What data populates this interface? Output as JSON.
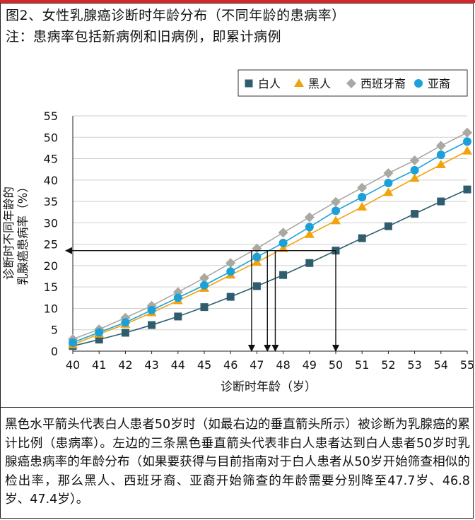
{
  "header": {
    "title": "图2、女性乳腺癌诊断时年龄分布（不同年龄的患病率）",
    "subtitle": "注：患病率包括新病例和旧病例，即累计病例"
  },
  "chart_data": {
    "type": "line",
    "x": [
      40,
      41,
      42,
      43,
      44,
      45,
      46,
      47,
      48,
      49,
      50,
      51,
      52,
      53,
      54,
      55
    ],
    "series": [
      {
        "name": "白人",
        "marker": "square",
        "color": "#2f5d6e",
        "values": [
          1.2,
          2.7,
          4.3,
          6.1,
          8.1,
          10.3,
          12.7,
          15.2,
          17.8,
          20.6,
          23.5,
          26.4,
          29.2,
          32.1,
          35.0,
          37.8
        ]
      },
      {
        "name": "黑人",
        "marker": "triangle",
        "color": "#f2a20c",
        "values": [
          1.5,
          4.0,
          6.3,
          9.0,
          11.8,
          14.7,
          17.8,
          20.8,
          24.0,
          27.3,
          30.5,
          33.7,
          37.1,
          40.4,
          43.6,
          46.8
        ]
      },
      {
        "name": "西班牙裔",
        "marker": "diamond",
        "color": "#a9a8a2",
        "values": [
          2.8,
          5.1,
          7.8,
          10.6,
          13.8,
          17.1,
          20.6,
          24.0,
          27.7,
          31.3,
          34.9,
          38.2,
          41.6,
          44.6,
          48.0,
          51.1
        ]
      },
      {
        "name": "亚裔",
        "marker": "circle",
        "color": "#1ba1d8",
        "values": [
          2.0,
          4.4,
          6.7,
          9.6,
          12.5,
          15.4,
          18.6,
          22.0,
          25.3,
          29.0,
          32.8,
          36.0,
          39.3,
          42.3,
          45.9,
          49.0
        ]
      }
    ],
    "xlabel": "诊断时年龄（岁）",
    "ylabel_lines": [
      "诊断时不同年龄的",
      "乳腺癌患病率（%）"
    ],
    "xlim": [
      40,
      55
    ],
    "ylim": [
      0,
      55
    ],
    "xticks": [
      40,
      41,
      42,
      43,
      44,
      45,
      46,
      47,
      48,
      49,
      50,
      51,
      52,
      53,
      54,
      55
    ],
    "yticks": [
      0,
      5,
      10,
      15,
      20,
      25,
      30,
      35,
      40,
      45,
      50,
      55
    ],
    "grid": "horizontal",
    "legend": "top-right",
    "annotations": {
      "horizontal_arrow": {
        "y": 23.5,
        "from_x": 50,
        "to_x": 40
      },
      "vertical_arrows": [
        {
          "x": 50,
          "from_y": 23.5
        },
        {
          "x": 47.4,
          "from_y": 23.5
        },
        {
          "x": 47.7,
          "from_y": 23.5
        },
        {
          "x": 46.8,
          "from_y": 23.5
        }
      ]
    }
  },
  "note": {
    "text": "黑色水平箭头代表白人患者50岁时（如最右边的垂直箭头所示）被诊断为乳腺癌的累计比例（患病率）。左边的三条黑色垂直箭头代表非白人患者达到白人患者50岁时乳腺癌患病率的年龄分布（如果要获得与目前指南对于白人患者从50岁开始筛查相似的检出率，那么黑人、西班牙裔、亚裔开始筛查的年龄需要分别降至47.7岁、46.8岁、47.4岁）。"
  }
}
